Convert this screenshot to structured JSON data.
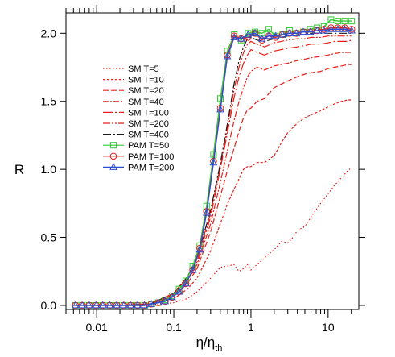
{
  "chart_data": {
    "type": "line",
    "xlabel": "η/η",
    "xlabel_sub": "th",
    "ylabel": "R",
    "xscale": "log",
    "xlim": [
      0.004,
      25
    ],
    "ylim": [
      -0.03,
      2.15
    ],
    "grid": false,
    "legend_position": "upper-left",
    "xticks": [
      {
        "value": 0.01,
        "label": "0.01"
      },
      {
        "value": 0.1,
        "label": "0.1"
      },
      {
        "value": 1,
        "label": "1"
      },
      {
        "value": 10,
        "label": "10"
      }
    ],
    "yticks": [
      {
        "value": 0.0,
        "label": "0.0"
      },
      {
        "value": 0.5,
        "label": "0.5"
      },
      {
        "value": 1.0,
        "label": "1.0"
      },
      {
        "value": 1.5,
        "label": "1.5"
      },
      {
        "value": 2.0,
        "label": "2.0"
      }
    ],
    "series": [
      {
        "name": "SM T=5",
        "color": "#e8201a",
        "dash": "1.5,2.5",
        "x": [
          0.005,
          0.01,
          0.02,
          0.05,
          0.1,
          0.15,
          0.2,
          0.3,
          0.4,
          0.5,
          0.6,
          0.7,
          0.8,
          0.9,
          1.0,
          1.2,
          1.5,
          2,
          2.5,
          3,
          3.5,
          4,
          5,
          6,
          8,
          10,
          12,
          15,
          18,
          20
        ],
        "y": [
          0.0,
          0.0,
          0.0,
          0.0,
          0.02,
          0.05,
          0.1,
          0.2,
          0.28,
          0.29,
          0.3,
          0.25,
          0.27,
          0.3,
          0.26,
          0.3,
          0.35,
          0.41,
          0.47,
          0.46,
          0.5,
          0.55,
          0.58,
          0.65,
          0.75,
          0.82,
          0.88,
          0.94,
          0.99,
          1.01
        ]
      },
      {
        "name": "SM T=10",
        "color": "#e8201a",
        "dash": "3,2",
        "x": [
          0.005,
          0.01,
          0.02,
          0.05,
          0.1,
          0.15,
          0.2,
          0.3,
          0.4,
          0.5,
          0.6,
          0.7,
          0.8,
          0.9,
          1.0,
          1.2,
          1.5,
          2,
          2.5,
          3,
          4,
          5,
          6,
          8,
          10,
          12,
          15,
          18,
          20
        ],
        "y": [
          0.0,
          0.0,
          0.0,
          0.01,
          0.05,
          0.12,
          0.2,
          0.4,
          0.6,
          0.75,
          0.85,
          0.93,
          1.0,
          1.02,
          1.02,
          1.05,
          1.05,
          1.1,
          1.2,
          1.27,
          1.34,
          1.38,
          1.4,
          1.43,
          1.46,
          1.48,
          1.5,
          1.51,
          1.51
        ]
      },
      {
        "name": "SM T=20",
        "color": "#e8201a",
        "dash": "7,3",
        "x": [
          0.005,
          0.01,
          0.02,
          0.05,
          0.1,
          0.15,
          0.2,
          0.3,
          0.4,
          0.5,
          0.6,
          0.7,
          0.8,
          0.9,
          1.0,
          1.2,
          1.5,
          2,
          3,
          4,
          5,
          6,
          8,
          10,
          12,
          15,
          18,
          20
        ],
        "y": [
          0.0,
          0.0,
          0.0,
          0.01,
          0.07,
          0.16,
          0.27,
          0.54,
          0.8,
          1.0,
          1.15,
          1.28,
          1.38,
          1.44,
          1.45,
          1.5,
          1.52,
          1.6,
          1.65,
          1.68,
          1.7,
          1.71,
          1.72,
          1.74,
          1.75,
          1.76,
          1.77,
          1.77
        ]
      },
      {
        "name": "SM T=40",
        "color": "#e8201a",
        "dash": "7,2,2,2",
        "x": [
          0.005,
          0.01,
          0.02,
          0.05,
          0.1,
          0.15,
          0.2,
          0.3,
          0.4,
          0.5,
          0.6,
          0.7,
          0.8,
          0.9,
          1.0,
          1.2,
          1.5,
          2,
          3,
          4,
          5,
          6,
          8,
          10,
          12,
          15,
          18,
          20
        ],
        "y": [
          0.0,
          0.0,
          0.0,
          0.01,
          0.08,
          0.18,
          0.3,
          0.6,
          0.9,
          1.15,
          1.35,
          1.5,
          1.6,
          1.68,
          1.72,
          1.75,
          1.73,
          1.76,
          1.78,
          1.8,
          1.81,
          1.82,
          1.83,
          1.84,
          1.85,
          1.86,
          1.86,
          1.86
        ]
      },
      {
        "name": "SM T=100",
        "color": "#e8201a",
        "dash": "12,3,2,3",
        "x": [
          0.005,
          0.01,
          0.02,
          0.05,
          0.1,
          0.15,
          0.2,
          0.3,
          0.4,
          0.5,
          0.6,
          0.7,
          0.8,
          0.9,
          1.0,
          1.2,
          1.5,
          2,
          3,
          4,
          5,
          6,
          8,
          10,
          12,
          15,
          18,
          20
        ],
        "y": [
          0.0,
          0.0,
          0.0,
          0.01,
          0.09,
          0.2,
          0.32,
          0.65,
          1.0,
          1.28,
          1.52,
          1.68,
          1.78,
          1.84,
          1.88,
          1.86,
          1.84,
          1.87,
          1.89,
          1.9,
          1.91,
          1.92,
          1.92,
          1.93,
          1.94,
          1.94,
          1.94,
          1.95
        ]
      },
      {
        "name": "SM T=200",
        "color": "#e8201a",
        "dash": "9,2,2,2,2,2",
        "x": [
          0.005,
          0.01,
          0.02,
          0.05,
          0.1,
          0.15,
          0.2,
          0.3,
          0.4,
          0.5,
          0.6,
          0.7,
          0.8,
          0.9,
          1.0,
          1.2,
          1.5,
          2,
          3,
          4,
          5,
          6,
          8,
          10,
          12,
          15,
          18,
          20
        ],
        "y": [
          0.0,
          0.0,
          0.0,
          0.01,
          0.09,
          0.21,
          0.34,
          0.68,
          1.02,
          1.32,
          1.58,
          1.75,
          1.86,
          1.92,
          1.94,
          1.92,
          1.9,
          1.93,
          1.95,
          1.96,
          1.96,
          1.97,
          1.97,
          1.98,
          1.98,
          1.98,
          1.98,
          1.98
        ]
      },
      {
        "name": "SM T=400",
        "color": "#1a1a1a",
        "dash": "10,3,2,3",
        "x": [
          0.005,
          0.01,
          0.02,
          0.05,
          0.1,
          0.15,
          0.2,
          0.3,
          0.4,
          0.5,
          0.6,
          0.7,
          0.8,
          0.9,
          1.0,
          1.2,
          1.5,
          2,
          3,
          4,
          5,
          6,
          8,
          10,
          12,
          15,
          18,
          20
        ],
        "y": [
          0.0,
          0.0,
          0.0,
          0.01,
          0.09,
          0.21,
          0.35,
          0.7,
          1.04,
          1.35,
          1.62,
          1.8,
          1.9,
          1.96,
          1.97,
          1.95,
          1.94,
          1.96,
          1.98,
          1.99,
          1.99,
          2.0,
          2.0,
          2.0,
          2.0,
          2.0,
          2.0,
          2.0
        ]
      },
      {
        "name": "PAM T=50",
        "color": "#33cc33",
        "dash": "",
        "marker": "square",
        "x": [
          0.0053,
          0.0065,
          0.008,
          0.0098,
          0.012,
          0.0148,
          0.0182,
          0.0224,
          0.0275,
          0.0338,
          0.0416,
          0.0511,
          0.0628,
          0.0772,
          0.0949,
          0.117,
          0.143,
          0.176,
          0.217,
          0.266,
          0.327,
          0.402,
          0.494,
          0.607,
          0.747,
          0.918,
          1.13,
          1.39,
          1.7,
          2.09,
          2.57,
          3.16,
          3.88,
          4.77,
          5.87,
          7.21,
          8.86,
          10.9,
          13.4,
          16.4,
          20.2
        ],
        "y": [
          0.0,
          0.0,
          0.0,
          0.0,
          0.0,
          0.0,
          0.0,
          0.0,
          0.0,
          0.0,
          0.0,
          0.01,
          0.02,
          0.04,
          0.07,
          0.12,
          0.18,
          0.29,
          0.44,
          0.73,
          1.11,
          1.52,
          1.87,
          1.99,
          1.95,
          2.0,
          2.01,
          2.0,
          2.03,
          1.98,
          1.99,
          2.02,
          2.0,
          2.01,
          2.03,
          2.04,
          2.05,
          2.1,
          2.09,
          2.09,
          2.09
        ]
      },
      {
        "name": "PAM T=100",
        "color": "#e8201a",
        "dash": "",
        "marker": "circle",
        "x": [
          0.0053,
          0.0065,
          0.008,
          0.0098,
          0.012,
          0.0148,
          0.0182,
          0.0224,
          0.0275,
          0.0338,
          0.0416,
          0.0511,
          0.0628,
          0.0772,
          0.0949,
          0.117,
          0.143,
          0.176,
          0.217,
          0.266,
          0.327,
          0.402,
          0.494,
          0.607,
          0.747,
          0.918,
          1.13,
          1.39,
          1.7,
          2.09,
          2.57,
          3.16,
          3.88,
          4.77,
          5.87,
          7.21,
          8.86,
          10.9,
          13.4,
          16.4,
          20.2
        ],
        "y": [
          0.0,
          0.0,
          0.0,
          0.0,
          0.0,
          0.0,
          0.0,
          0.0,
          0.0,
          0.0,
          0.0,
          0.01,
          0.02,
          0.03,
          0.06,
          0.1,
          0.16,
          0.26,
          0.42,
          0.69,
          1.06,
          1.45,
          1.84,
          1.98,
          1.96,
          1.97,
          2.0,
          1.95,
          1.98,
          1.97,
          1.99,
          2.0,
          2.0,
          2.01,
          2.01,
          2.02,
          2.03,
          2.04,
          2.04,
          2.04,
          2.03
        ]
      },
      {
        "name": "PAM T=200",
        "color": "#2a4fd6",
        "dash": "",
        "marker": "triangle",
        "x": [
          0.0053,
          0.0065,
          0.008,
          0.0098,
          0.012,
          0.0148,
          0.0182,
          0.0224,
          0.0275,
          0.0338,
          0.0416,
          0.0511,
          0.0628,
          0.0772,
          0.0949,
          0.117,
          0.143,
          0.176,
          0.217,
          0.266,
          0.327,
          0.402,
          0.494,
          0.607,
          0.747,
          0.918,
          1.13,
          1.39,
          1.7,
          2.09,
          2.57,
          3.16,
          3.88,
          4.77,
          5.87,
          7.21,
          8.86,
          10.9,
          13.4,
          16.4,
          20.2
        ],
        "y": [
          0.0,
          0.0,
          0.0,
          0.0,
          0.0,
          0.0,
          0.0,
          0.0,
          0.0,
          0.0,
          0.0,
          0.01,
          0.02,
          0.03,
          0.06,
          0.1,
          0.16,
          0.26,
          0.41,
          0.68,
          1.05,
          1.44,
          1.83,
          1.97,
          1.96,
          1.99,
          2.0,
          1.96,
          1.98,
          1.98,
          1.99,
          2.0,
          2.0,
          2.01,
          2.01,
          2.02,
          2.02,
          2.03,
          2.03,
          2.03,
          2.02
        ]
      }
    ]
  }
}
